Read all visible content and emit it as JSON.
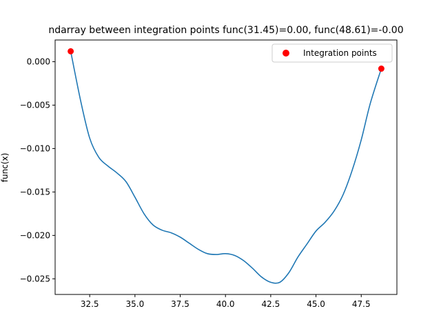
{
  "chart_data": {
    "type": "line",
    "title": "ndarray between integration points func(31.45)=0.00, func(48.61)=-0.00",
    "xlabel": "",
    "ylabel": "func(x)",
    "xlim": [
      30.59,
      49.47
    ],
    "ylim": [
      -0.0268,
      0.0025
    ],
    "xticks": [
      32.5,
      35.0,
      37.5,
      40.0,
      42.5,
      45.0,
      47.5
    ],
    "xtick_labels": [
      "32.5",
      "35.0",
      "37.5",
      "40.0",
      "42.5",
      "45.0",
      "47.5"
    ],
    "yticks": [
      0.0,
      -0.005,
      -0.01,
      -0.015,
      -0.02,
      -0.025
    ],
    "ytick_labels": [
      "0.000",
      "−0.005",
      "−0.010",
      "−0.015",
      "−0.020",
      "−0.025"
    ],
    "grid": false,
    "legend_position": "upper right",
    "series": [
      {
        "kind": "line",
        "color": "#1f77b4",
        "x": [
          31.45,
          32.0,
          32.5,
          33.0,
          33.5,
          34.0,
          34.5,
          35.0,
          35.5,
          36.0,
          36.5,
          37.0,
          37.5,
          38.0,
          38.5,
          39.0,
          39.5,
          40.0,
          40.5,
          41.0,
          41.5,
          42.0,
          42.5,
          43.0,
          43.5,
          44.0,
          44.5,
          45.0,
          45.5,
          46.0,
          46.5,
          47.0,
          47.5,
          48.0,
          48.61
        ],
        "y": [
          0.0012,
          -0.0045,
          -0.0088,
          -0.011,
          -0.012,
          -0.0128,
          -0.0138,
          -0.0156,
          -0.0175,
          -0.0188,
          -0.0194,
          -0.0197,
          -0.0202,
          -0.0209,
          -0.0216,
          -0.0221,
          -0.0222,
          -0.0221,
          -0.0223,
          -0.0229,
          -0.0238,
          -0.0248,
          -0.0254,
          -0.0254,
          -0.0243,
          -0.0225,
          -0.021,
          -0.0195,
          -0.0185,
          -0.0172,
          -0.0153,
          -0.0125,
          -0.009,
          -0.0048,
          -0.0008
        ]
      },
      {
        "kind": "scatter",
        "name": "Integration points",
        "color": "#ff0000",
        "x": [
          31.45,
          48.61
        ],
        "y": [
          0.0012,
          -0.0008
        ]
      }
    ]
  },
  "colors": {
    "line": "#1f77b4",
    "points": "#ff0000",
    "axes": "#000000",
    "legend_border": "#cccccc"
  }
}
